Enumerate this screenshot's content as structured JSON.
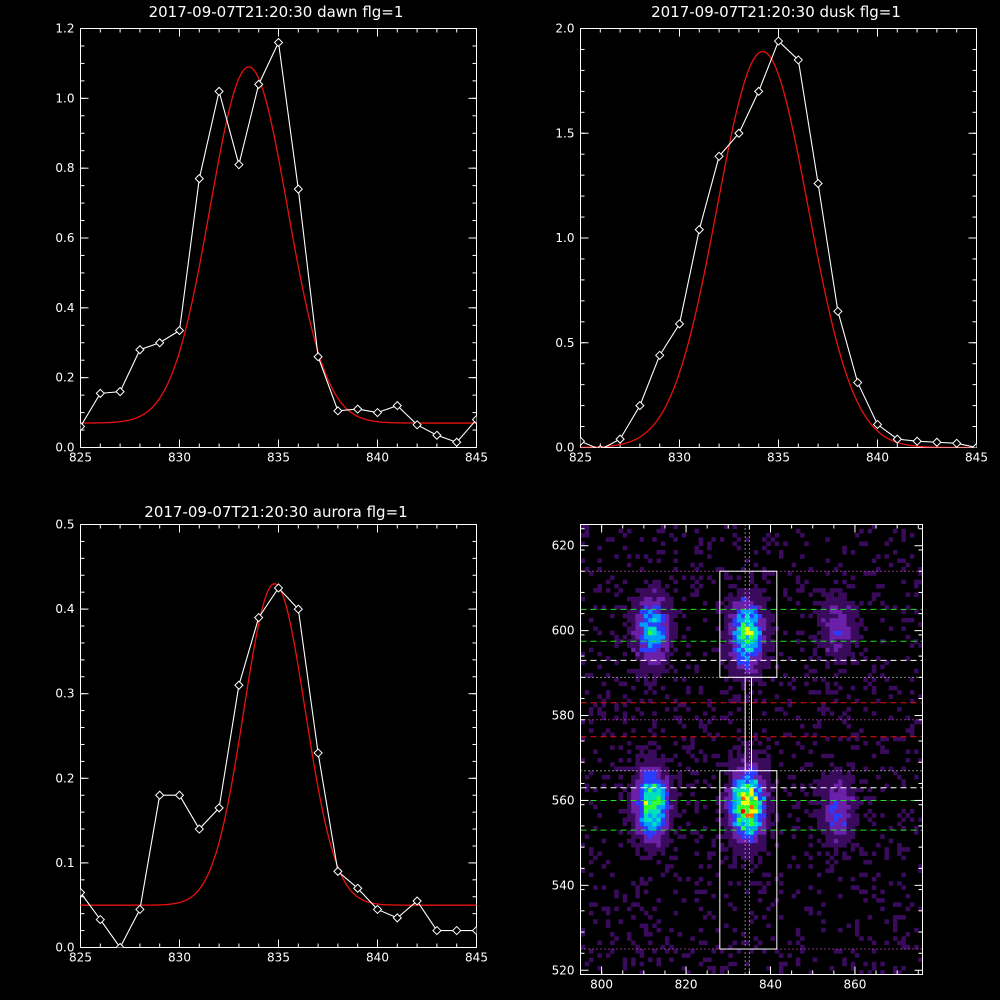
{
  "chart_data": [
    {
      "type": "line",
      "title": "2017-09-07T21:20:30 dawn flg=1",
      "xlim": [
        825,
        845
      ],
      "ylim": [
        0,
        1.2
      ],
      "xticks": [
        825,
        830,
        835,
        840,
        845
      ],
      "xtick_labels": [
        "825",
        "830",
        "835",
        "840",
        "845"
      ],
      "yticks": [
        0,
        0.2,
        0.4,
        0.6,
        0.8,
        1.0,
        1.2
      ],
      "ytick_labels": [
        "0.0",
        "0.2",
        "0.4",
        "0.6",
        "0.8",
        "1.0",
        "1.2"
      ],
      "series": [
        {
          "color": "#ffffff",
          "marker": "diamond",
          "x": [
            825,
            826,
            827,
            828,
            829,
            830,
            831,
            832,
            833,
            834,
            835,
            836,
            837,
            838,
            839,
            840,
            841,
            842,
            843,
            844,
            845
          ],
          "y": [
            0.06,
            0.155,
            0.16,
            0.28,
            0.3,
            0.335,
            0.77,
            1.02,
            0.81,
            1.04,
            1.16,
            0.74,
            0.26,
            0.105,
            0.11,
            0.1,
            0.12,
            0.065,
            0.035,
            0.015,
            0.08
          ]
        },
        {
          "color": "#e8120c",
          "fit": "gaussian",
          "params": {
            "amplitude": 1.02,
            "center": 833.5,
            "sigma": 1.95,
            "baseline": 0.07
          }
        }
      ]
    },
    {
      "type": "line",
      "title": "2017-09-07T21:20:30 dusk flg=1",
      "xlim": [
        825,
        845
      ],
      "ylim": [
        0,
        2.0
      ],
      "xticks": [
        825,
        830,
        835,
        840,
        845
      ],
      "xtick_labels": [
        "825",
        "830",
        "835",
        "840",
        "845"
      ],
      "yticks": [
        0,
        0.5,
        1.0,
        1.5,
        2.0
      ],
      "ytick_labels": [
        "0.0",
        "0.5",
        "1.0",
        "1.5",
        "2.0"
      ],
      "series": [
        {
          "color": "#ffffff",
          "marker": "diamond",
          "x": [
            825,
            826,
            827,
            828,
            829,
            830,
            831,
            832,
            833,
            834,
            835,
            836,
            837,
            838,
            839,
            840,
            841,
            842,
            843,
            844,
            845
          ],
          "y": [
            0.03,
            -0.01,
            0.04,
            0.2,
            0.44,
            0.59,
            1.04,
            1.39,
            1.5,
            1.7,
            1.94,
            1.85,
            1.26,
            0.65,
            0.31,
            0.11,
            0.04,
            0.03,
            0.025,
            0.02,
            0.0
          ]
        },
        {
          "color": "#e8120c",
          "fit": "gaussian",
          "params": {
            "amplitude": 1.89,
            "center": 834.2,
            "sigma": 2.3,
            "baseline": 0.0
          }
        }
      ]
    },
    {
      "type": "line",
      "title": "2017-09-07T21:20:30 aurora flg=1",
      "xlim": [
        825,
        845
      ],
      "ylim": [
        0,
        0.5
      ],
      "xticks": [
        825,
        830,
        835,
        840,
        845
      ],
      "xtick_labels": [
        "825",
        "830",
        "835",
        "840",
        "845"
      ],
      "yticks": [
        0,
        0.1,
        0.2,
        0.3,
        0.4,
        0.5
      ],
      "ytick_labels": [
        "0.0",
        "0.1",
        "0.2",
        "0.3",
        "0.4",
        "0.5"
      ],
      "series": [
        {
          "color": "#ffffff",
          "marker": "diamond",
          "x": [
            825,
            826,
            827,
            828,
            829,
            830,
            831,
            832,
            833,
            834,
            835,
            836,
            837,
            838,
            839,
            840,
            841,
            842,
            843,
            844,
            845
          ],
          "y": [
            0.065,
            0.033,
            0.0,
            0.045,
            0.18,
            0.18,
            0.14,
            0.165,
            0.31,
            0.39,
            0.425,
            0.4,
            0.23,
            0.09,
            0.07,
            0.045,
            0.035,
            0.055,
            0.02,
            0.02,
            0.02
          ]
        },
        {
          "color": "#e8120c",
          "fit": "gaussian",
          "params": {
            "amplitude": 0.38,
            "center": 834.8,
            "sigma": 1.55,
            "baseline": 0.05
          }
        }
      ]
    },
    {
      "type": "heatmap",
      "xlim": [
        795,
        876
      ],
      "ylim": [
        519,
        625
      ],
      "xticks": [
        800,
        820,
        840,
        860
      ],
      "xtick_labels": [
        "800",
        "820",
        "840",
        "860"
      ],
      "yticks": [
        520,
        540,
        560,
        580,
        600,
        620
      ],
      "ytick_labels": [
        "520",
        "540",
        "560",
        "580",
        "600",
        "620"
      ],
      "colormap": [
        "#000000",
        "#3a0a5c",
        "#6a20a8",
        "#2a3cff",
        "#00a0ff",
        "#00e0c0",
        "#30ff30",
        "#f0ff00",
        "#ff6000",
        "#ff0000"
      ],
      "emission_blobs": [
        {
          "x": 812,
          "y": 559,
          "peak": 0.75
        },
        {
          "x": 834.5,
          "y": 559,
          "peak": 1.0
        },
        {
          "x": 812,
          "y": 600,
          "peak": 0.55
        },
        {
          "x": 834.5,
          "y": 599,
          "peak": 0.7
        },
        {
          "x": 856,
          "y": 558,
          "peak": 0.3
        },
        {
          "x": 856,
          "y": 601,
          "peak": 0.25
        }
      ],
      "boxes": [
        {
          "x0": 828,
          "x1": 841.5,
          "y0": 589,
          "y1": 614,
          "color": "#ffffff"
        },
        {
          "x0": 828,
          "x1": 841.5,
          "y0": 525,
          "y1": 567,
          "color": "#ffffff"
        },
        {
          "x0": 834,
          "x1": 835.5,
          "y0": 567,
          "y1": 589,
          "color": "#ffffff"
        }
      ],
      "vlines": [
        {
          "x": 834,
          "style": "dotted",
          "color": "#ffffff"
        },
        {
          "x": 835,
          "style": "dotted",
          "color": "#ffffff"
        }
      ],
      "hlines": [
        {
          "y": 614,
          "style": "dotted",
          "color": "#ff66ff"
        },
        {
          "y": 605,
          "style": "dashed",
          "color": "#20e020"
        },
        {
          "y": 597.5,
          "style": "dashed",
          "color": "#20e020"
        },
        {
          "y": 593,
          "style": "dashed",
          "color": "#ffffff"
        },
        {
          "y": 589,
          "style": "dotted",
          "color": "#ffffff"
        },
        {
          "y": 583,
          "style": "dashed",
          "color": "#e81010"
        },
        {
          "y": 579,
          "style": "dotted",
          "color": "#ff66ff"
        },
        {
          "y": 575,
          "style": "dashed",
          "color": "#e81010"
        },
        {
          "y": 567,
          "style": "dotted",
          "color": "#ffffff"
        },
        {
          "y": 563,
          "style": "dashed",
          "color": "#ffffff"
        },
        {
          "y": 560,
          "style": "dashed",
          "color": "#20e020"
        },
        {
          "y": 553,
          "style": "dashed",
          "color": "#20e020"
        },
        {
          "y": 525,
          "style": "dotted",
          "color": "#ff66ff"
        }
      ]
    }
  ]
}
